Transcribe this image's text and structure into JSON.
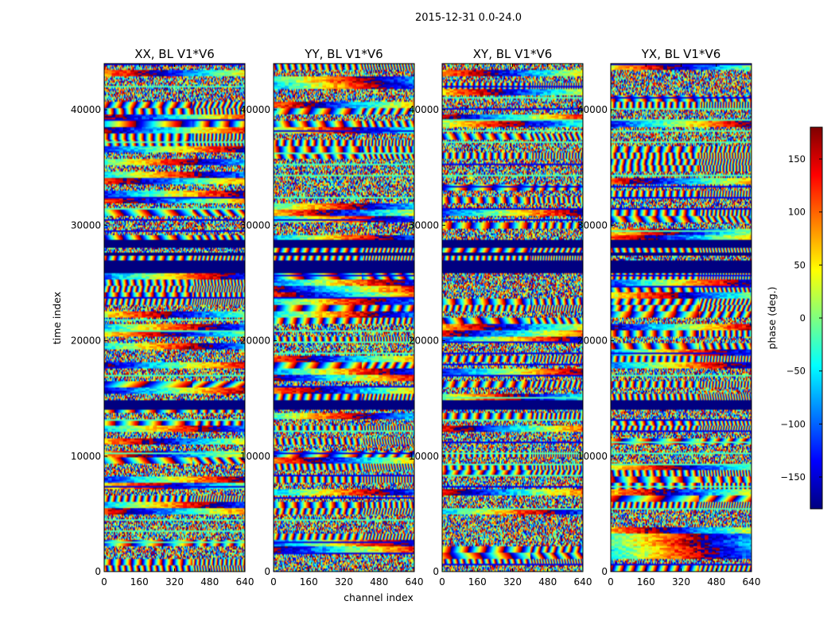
{
  "figure": {
    "title": "2015-12-31 0.0-24.0"
  },
  "chart_data": {
    "type": "heatmap",
    "title": "2015-12-31 0.0-24.0",
    "xlabel": "channel index",
    "ylabel": "time index",
    "xlim": [
      0,
      640
    ],
    "ylim": [
      0,
      44000
    ],
    "xticks": [
      0,
      160,
      320,
      480,
      640
    ],
    "yticks": [
      0,
      10000,
      20000,
      30000,
      40000
    ],
    "panels": [
      {
        "title": "XX, BL V1*V6"
      },
      {
        "title": "YY, BL V1*V6"
      },
      {
        "title": "XY, BL V1*V6"
      },
      {
        "title": "YX, BL V1*V6"
      }
    ],
    "flagged_bands": [
      [
        14000,
        14900
      ],
      [
        25900,
        27000
      ],
      [
        27400,
        27600
      ],
      [
        28100,
        28700
      ]
    ],
    "colorbar": {
      "label": "phase (deg.)",
      "range": [
        -180,
        180
      ],
      "ticks": [
        -150,
        -100,
        -50,
        0,
        50,
        100,
        150
      ],
      "tick_labels": [
        "−150",
        "−100",
        "−50",
        "0",
        "50",
        "100",
        "150"
      ],
      "colors": [
        "#00007f",
        "#0000ff",
        "#007fff",
        "#00ffff",
        "#7fff7f",
        "#ffff00",
        "#ff7f00",
        "#ff0000",
        "#7f0000"
      ]
    }
  }
}
